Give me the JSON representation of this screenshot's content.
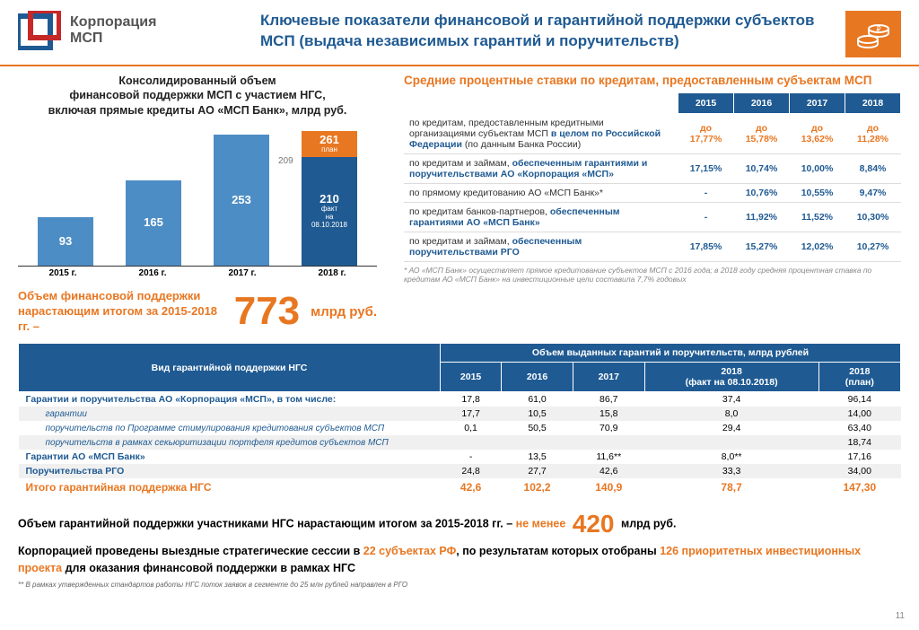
{
  "colors": {
    "blue": "#1f5a92",
    "lightblue": "#4d8dc5",
    "orange": "#e87722",
    "grey": "#6e6e6e"
  },
  "logo": {
    "line1": "Корпорация",
    "line2": "МСП"
  },
  "title": "Ключевые показатели финансовой и гарантийной поддержки субъектов МСП (выдача независимых гарантий и поручительств)",
  "chart": {
    "title": "Консолидированный объем\nфинансовой поддержки МСП с участием НГС,\nвключая прямые кредиты АО «МСП Банк», млрд руб.",
    "max": 261,
    "bars": [
      {
        "label": "2015 г.",
        "segs": [
          {
            "v": 93,
            "text": "93",
            "color": "#4d8dc5"
          }
        ]
      },
      {
        "label": "2016 г.",
        "segs": [
          {
            "v": 165,
            "text": "165",
            "color": "#4d8dc5"
          }
        ]
      },
      {
        "label": "2017 г.",
        "segs": [
          {
            "v": 253,
            "text": "253",
            "color": "#4d8dc5"
          }
        ]
      },
      {
        "label": "2018 г.",
        "ghost": "209",
        "segs": [
          {
            "v": 51,
            "text": "261",
            "sub": "план",
            "color": "#e87722"
          },
          {
            "v": 210,
            "text": "210",
            "sub": "факт\nна\n08.10.2018",
            "color": "#1f5a92"
          }
        ]
      }
    ]
  },
  "bignum1": {
    "label": "Объем финансовой поддержки  нарастающим итогом за 2015-2018 гг. –",
    "num": "773",
    "unit": "млрд руб."
  },
  "rates": {
    "title": "Средние процентные ставки по кредитам, предоставленным субъектам МСП",
    "years": [
      "2015",
      "2016",
      "2017",
      "2018"
    ],
    "rows": [
      {
        "desc": "по кредитам, предоставленным кредитными организациями субъектам МСП <b>в целом по Российской Федерации</b> (по данным Банка России)",
        "vals": [
          "до\n17,77%",
          "до\n15,78%",
          "до\n13,62%",
          "до\n11,28%"
        ],
        "orange": true
      },
      {
        "desc": "по кредитам и займам, <b>обеспеченным гарантиями и поручительствами АО «Корпорация «МСП»</b>",
        "vals": [
          "17,15%",
          "10,74%",
          "10,00%",
          "8,84%"
        ]
      },
      {
        "desc": "по прямому кредитованию АО «МСП Банк»*",
        "vals": [
          "-",
          "10,76%",
          "10,55%",
          "9,47%"
        ]
      },
      {
        "desc": "по кредитам банков-партнеров, <b>обеспеченным гарантиями АО «МСП Банк»</b>",
        "vals": [
          "-",
          "11,92%",
          "11,52%",
          "10,30%"
        ]
      },
      {
        "desc": "по кредитам и займам, <b>обеспеченным поручительствами РГО</b>",
        "vals": [
          "17,85%",
          "15,27%",
          "12,02%",
          "10,27%"
        ]
      }
    ],
    "foot": "* АО «МСП Банк» осуществляет прямое кредитование субъектов МСП с 2016 года; в 2018 году средняя процентная ставка по кредитам АО «МСП Банк» на инвестиционные цели  составила 7,7% годовых"
  },
  "vol": {
    "head1": "Вид гарантийной поддержки НГС",
    "head2": "Объем выданных гарантий и поручительств, млрд рублей",
    "years": [
      "2015",
      "2016",
      "2017",
      "2018\n(факт на 08.10.2018)",
      "2018\n(план)"
    ],
    "rows": [
      {
        "name": "Гарантии и поручительства АО «Корпорация «МСП», в том числе:",
        "v": [
          "17,8",
          "61,0",
          "86,7",
          "37,4",
          "96,14"
        ],
        "stripe": false
      },
      {
        "name": "гарантии",
        "v": [
          "17,7",
          "10,5",
          "15,8",
          "8,0",
          "14,00"
        ],
        "sub": true,
        "stripe": true
      },
      {
        "name": "поручительств по Программе стимулирования кредитования субъектов МСП",
        "v": [
          "0,1",
          "50,5",
          "70,9",
          "29,4",
          "63,40"
        ],
        "sub": true
      },
      {
        "name": "поручительств в рамках секьюритизации портфеля кредитов субъектов МСП",
        "v": [
          "",
          "",
          "",
          "",
          "18,74"
        ],
        "sub": true,
        "stripe": true
      },
      {
        "name": "Гарантии АО «МСП Банк»",
        "v": [
          "-",
          "13,5",
          "11,6**",
          "8,0**",
          "17,16"
        ]
      },
      {
        "name": "Поручительства РГО",
        "v": [
          "24,8",
          "27,7",
          "42,6",
          "33,3",
          "34,00"
        ],
        "stripe": true
      }
    ],
    "total": {
      "name": "Итого гарантийная поддержка НГС",
      "v": [
        "42,6",
        "102,2",
        "140,9",
        "78,7",
        "147,30"
      ]
    }
  },
  "bottom": {
    "l1a": "Объем гарантийной поддержки участниками НГС нарастающим итогом  за 2015-2018 гг. – ",
    "l1b": "не менее ",
    "l1num": "420",
    "l1c": " млрд руб.",
    "l2a": "Корпорацией проведены выездные стратегические сессии в ",
    "l2b": "22 субъектах РФ",
    "l2c": ", по результатам которых отобраны ",
    "l2d": "126 приоритетных инвестиционных проекта",
    "l2e": " для оказания финансовой поддержки в рамках НГС"
  },
  "note": "** В рамках утвержденных стандартов работы НГС поток заявок в сегменте до 25 млн рублей направлен в РГО",
  "page": "11"
}
